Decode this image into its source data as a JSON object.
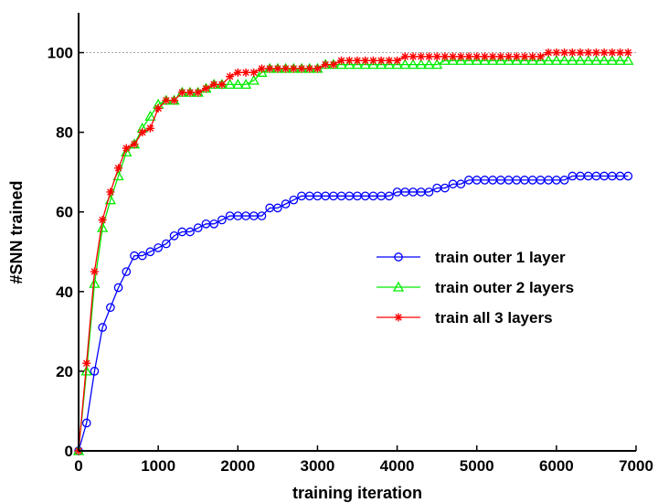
{
  "chart_data": {
    "type": "line",
    "title": "",
    "xlabel": "training iteration",
    "ylabel": "#SNN trained",
    "xlim": [
      0,
      7000
    ],
    "ylim": [
      0,
      110
    ],
    "xticks": [
      0,
      1000,
      2000,
      3000,
      4000,
      5000,
      6000,
      7000
    ],
    "yticks": [
      0,
      20,
      40,
      60,
      80,
      100
    ],
    "xtick_labels": [
      "0",
      "1000",
      "2000",
      "3000",
      "4000",
      "5000",
      "6000",
      "7000"
    ],
    "ytick_labels": [
      "0",
      "20",
      "40",
      "60",
      "80",
      "100"
    ],
    "reference_line_y": 100,
    "legend_position": "center-right",
    "series": [
      {
        "name": "train outer 1 layer",
        "color": "#0000ff",
        "marker": "circle",
        "x": [
          0,
          100,
          200,
          300,
          400,
          500,
          600,
          700,
          800,
          900,
          1000,
          1100,
          1200,
          1300,
          1400,
          1500,
          1600,
          1700,
          1800,
          1900,
          2000,
          2100,
          2200,
          2300,
          2400,
          2500,
          2600,
          2700,
          2800,
          2900,
          3000,
          3100,
          3200,
          3300,
          3400,
          3500,
          3600,
          3700,
          3800,
          3900,
          4000,
          4100,
          4200,
          4300,
          4400,
          4500,
          4600,
          4700,
          4800,
          4900,
          5000,
          5100,
          5200,
          5300,
          5400,
          5500,
          5600,
          5700,
          5800,
          5900,
          6000,
          6100,
          6200,
          6300,
          6400,
          6500,
          6600,
          6700,
          6800,
          6900
        ],
        "y": [
          0,
          7,
          20,
          31,
          36,
          41,
          45,
          49,
          49,
          50,
          51,
          52,
          54,
          55,
          55,
          56,
          57,
          57,
          58,
          59,
          59,
          59,
          59,
          59,
          61,
          61,
          62,
          63,
          64,
          64,
          64,
          64,
          64,
          64,
          64,
          64,
          64,
          64,
          64,
          64,
          65,
          65,
          65,
          65,
          65,
          66,
          66,
          67,
          67,
          68,
          68,
          68,
          68,
          68,
          68,
          68,
          68,
          68,
          68,
          68,
          68,
          68,
          69,
          69,
          69,
          69,
          69,
          69,
          69,
          69
        ]
      },
      {
        "name": "train outer 2 layers",
        "color": "#00ee00",
        "marker": "triangle",
        "x": [
          0,
          100,
          200,
          300,
          400,
          500,
          600,
          700,
          800,
          900,
          1000,
          1100,
          1200,
          1300,
          1400,
          1500,
          1600,
          1700,
          1800,
          1900,
          2000,
          2100,
          2200,
          2300,
          2400,
          2500,
          2600,
          2700,
          2800,
          2900,
          3000,
          3100,
          3200,
          3300,
          3400,
          3500,
          3600,
          3700,
          3800,
          3900,
          4000,
          4100,
          4200,
          4300,
          4400,
          4500,
          4600,
          4700,
          4800,
          4900,
          5000,
          5100,
          5200,
          5300,
          5400,
          5500,
          5600,
          5700,
          5800,
          5900,
          6000,
          6100,
          6200,
          6300,
          6400,
          6500,
          6600,
          6700,
          6800,
          6900
        ],
        "y": [
          0,
          20,
          42,
          56,
          63,
          69,
          75,
          77,
          81,
          84,
          87,
          88,
          88,
          90,
          90,
          90,
          91,
          92,
          92,
          92,
          92,
          92,
          93,
          95,
          96,
          96,
          96,
          96,
          96,
          96,
          96,
          97,
          97,
          97,
          97,
          97,
          97,
          97,
          97,
          97,
          97,
          97,
          97,
          97,
          97,
          97,
          98,
          98,
          98,
          98,
          98,
          98,
          98,
          98,
          98,
          98,
          98,
          98,
          98,
          98,
          98,
          98,
          98,
          98,
          98,
          98,
          98,
          98,
          98,
          98
        ]
      },
      {
        "name": "train all 3 layers",
        "color": "#ff0000",
        "marker": "star",
        "x": [
          0,
          100,
          200,
          300,
          400,
          500,
          600,
          700,
          800,
          900,
          1000,
          1100,
          1200,
          1300,
          1400,
          1500,
          1600,
          1700,
          1800,
          1900,
          2000,
          2100,
          2200,
          2300,
          2400,
          2500,
          2600,
          2700,
          2800,
          2900,
          3000,
          3100,
          3200,
          3300,
          3400,
          3500,
          3600,
          3700,
          3800,
          3900,
          4000,
          4100,
          4200,
          4300,
          4400,
          4500,
          4600,
          4700,
          4800,
          4900,
          5000,
          5100,
          5200,
          5300,
          5400,
          5500,
          5600,
          5700,
          5800,
          5900,
          6000,
          6100,
          6200,
          6300,
          6400,
          6500,
          6600,
          6700,
          6800,
          6900
        ],
        "y": [
          0,
          22,
          45,
          58,
          65,
          71,
          76,
          77,
          80,
          81,
          86,
          88,
          88,
          90,
          90,
          90,
          91,
          92,
          92,
          94,
          95,
          95,
          95,
          96,
          96,
          96,
          96,
          96,
          96,
          96,
          96,
          97,
          97,
          98,
          98,
          98,
          98,
          98,
          98,
          98,
          98,
          99,
          99,
          99,
          99,
          99,
          99,
          99,
          99,
          99,
          99,
          99,
          99,
          99,
          99,
          99,
          99,
          99,
          99,
          100,
          100,
          100,
          100,
          100,
          100,
          100,
          100,
          100,
          100,
          100
        ]
      }
    ]
  }
}
